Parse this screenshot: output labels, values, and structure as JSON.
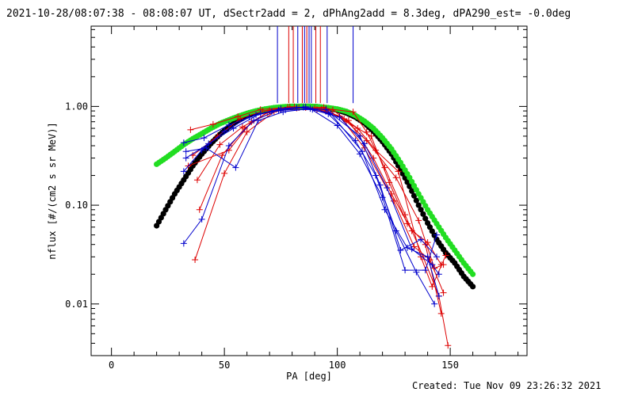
{
  "header": {
    "title": "2021-10-28/08:07:38 - 08:08:07 UT, dSectr2add = 2, dPhAng2add = 8.3deg, dPA290_est= -0.0deg"
  },
  "footer": {
    "created": "Created: Tue Nov 09 23:26:32 2021"
  },
  "chart_data": {
    "type": "scatter",
    "xlabel": "PA [deg]",
    "ylabel": "nflux [#/(cm2 s sr MeV)]",
    "xlim": [
      -9,
      184
    ],
    "ylim": [
      0.003,
      6.5
    ],
    "y_scale": "log",
    "x_ticks": [
      0,
      50,
      100,
      150
    ],
    "x_tick_labels": [
      "0",
      "50",
      "100",
      "150"
    ],
    "y_ticks": [
      0.01,
      0.1,
      1.0
    ],
    "y_tick_labels": [
      "0.01",
      "0.10",
      "1.00"
    ],
    "grid": false,
    "colors": {
      "fit_black": "#000000",
      "fit_green": "#22dd22",
      "red": "#dd0000",
      "blue": "#0000cc"
    },
    "vertical_markers": {
      "y_range": [
        1.08,
        6.5
      ],
      "lines": [
        {
          "x": 73.5,
          "color": "#0000cc"
        },
        {
          "x": 78.5,
          "color": "#dd0000"
        },
        {
          "x": 80.5,
          "color": "#dd0000"
        },
        {
          "x": 82.5,
          "color": "#0000cc"
        },
        {
          "x": 84.5,
          "color": "#dd0000"
        },
        {
          "x": 85.5,
          "color": "#0000cc"
        },
        {
          "x": 86.5,
          "color": "#dd0000"
        },
        {
          "x": 87.5,
          "color": "#0000cc"
        },
        {
          "x": 88.5,
          "color": "#0000cc"
        },
        {
          "x": 90.5,
          "color": "#dd0000"
        },
        {
          "x": 92.5,
          "color": "#dd0000"
        },
        {
          "x": 95.5,
          "color": "#0000cc"
        },
        {
          "x": 107.0,
          "color": "#0000cc"
        }
      ]
    },
    "series": [
      {
        "style": "dots",
        "color": "#000000",
        "x": [
          20,
          24,
          28,
          32,
          36,
          40,
          44,
          48,
          52,
          56,
          60,
          64,
          68,
          72,
          76,
          80,
          84,
          88,
          92,
          96,
          100,
          104,
          108,
          112,
          116,
          120,
          124,
          128,
          132,
          136,
          140,
          144,
          148,
          152,
          156,
          160
        ],
        "y": [
          0.062,
          0.09,
          0.13,
          0.18,
          0.25,
          0.33,
          0.42,
          0.52,
          0.62,
          0.72,
          0.8,
          0.87,
          0.92,
          0.96,
          0.98,
          0.99,
          1.0,
          1.0,
          0.99,
          0.96,
          0.92,
          0.86,
          0.78,
          0.68,
          0.56,
          0.44,
          0.33,
          0.23,
          0.155,
          0.1,
          0.066,
          0.045,
          0.033,
          0.026,
          0.019,
          0.015
        ]
      },
      {
        "style": "dots",
        "color": "#22dd22",
        "x": [
          20,
          24,
          28,
          32,
          36,
          40,
          44,
          48,
          52,
          56,
          60,
          64,
          68,
          72,
          76,
          80,
          84,
          88,
          92,
          96,
          100,
          104,
          108,
          112,
          116,
          120,
          124,
          128,
          132,
          136,
          140,
          144,
          148,
          152,
          156,
          160
        ],
        "y": [
          0.26,
          0.3,
          0.35,
          0.41,
          0.47,
          0.53,
          0.6,
          0.67,
          0.73,
          0.79,
          0.85,
          0.9,
          0.94,
          0.97,
          0.99,
          1.0,
          1.0,
          1.0,
          0.99,
          0.97,
          0.94,
          0.89,
          0.81,
          0.71,
          0.6,
          0.48,
          0.37,
          0.27,
          0.19,
          0.13,
          0.09,
          0.065,
          0.047,
          0.035,
          0.026,
          0.02
        ]
      },
      {
        "style": "line+cross",
        "color": "#dd0000",
        "x": [
          37,
          50,
          60,
          72,
          83,
          95,
          107,
          113,
          121,
          130,
          138,
          145,
          149
        ],
        "y": [
          0.028,
          0.21,
          0.55,
          0.88,
          0.97,
          0.95,
          0.88,
          0.55,
          0.24,
          0.08,
          0.03,
          0.012,
          0.0038
        ]
      },
      {
        "style": "line+cross",
        "color": "#dd0000",
        "x": [
          35,
          45,
          56,
          66,
          78,
          90,
          101,
          112,
          125,
          134,
          141,
          147
        ],
        "y": [
          0.58,
          0.66,
          0.79,
          0.93,
          0.98,
          0.96,
          0.8,
          0.38,
          0.11,
          0.038,
          0.028,
          0.013
        ]
      },
      {
        "style": "line+cross",
        "color": "#dd0000",
        "x": [
          38,
          48,
          58,
          69,
          81,
          93,
          105,
          116,
          124,
          133,
          140,
          146
        ],
        "y": [
          0.18,
          0.41,
          0.62,
          0.86,
          0.99,
          0.94,
          0.72,
          0.3,
          0.13,
          0.055,
          0.042,
          0.025
        ]
      },
      {
        "style": "line+cross",
        "color": "#dd0000",
        "x": [
          39,
          49,
          59,
          70,
          82,
          94,
          104,
          115,
          123,
          131,
          139,
          146
        ],
        "y": [
          0.09,
          0.32,
          0.6,
          0.91,
          0.96,
          0.98,
          0.7,
          0.5,
          0.17,
          0.065,
          0.04,
          0.008
        ]
      },
      {
        "style": "line+cross",
        "color": "#dd0000",
        "x": [
          36,
          47,
          57,
          67,
          79,
          91,
          103,
          113,
          126,
          136,
          143,
          147
        ],
        "y": [
          0.32,
          0.5,
          0.75,
          0.9,
          0.99,
          0.93,
          0.75,
          0.45,
          0.19,
          0.07,
          0.023,
          0.025
        ]
      },
      {
        "style": "line+cross",
        "color": "#dd0000",
        "x": [
          34,
          52,
          62,
          75,
          86,
          98,
          109,
          117,
          127,
          137,
          142,
          148
        ],
        "y": [
          0.25,
          0.36,
          0.7,
          0.94,
          0.97,
          0.92,
          0.6,
          0.36,
          0.22,
          0.03,
          0.015,
          0.031
        ]
      },
      {
        "style": "line+cross",
        "color": "#0000cc",
        "x": [
          32,
          40,
          52,
          63,
          74,
          85,
          96,
          108,
          117,
          126,
          135,
          143
        ],
        "y": [
          0.041,
          0.072,
          0.4,
          0.72,
          0.92,
          0.98,
          0.84,
          0.45,
          0.2,
          0.055,
          0.021,
          0.01
        ]
      },
      {
        "style": "line+cross",
        "color": "#0000cc",
        "x": [
          33,
          42,
          55,
          65,
          76,
          88,
          100,
          110,
          120,
          130,
          139,
          144
        ],
        "y": [
          0.35,
          0.38,
          0.24,
          0.72,
          0.88,
          0.95,
          0.64,
          0.33,
          0.12,
          0.022,
          0.022,
          0.05
        ]
      },
      {
        "style": "line+cross",
        "color": "#0000cc",
        "x": [
          32,
          41,
          52,
          64,
          75,
          86,
          97,
          111,
          121,
          131,
          140,
          145
        ],
        "y": [
          0.43,
          0.48,
          0.65,
          0.82,
          0.95,
          0.99,
          0.85,
          0.35,
          0.09,
          0.037,
          0.03,
          0.012
        ]
      },
      {
        "style": "line+cross",
        "color": "#0000cc",
        "x": [
          33,
          43,
          54,
          66,
          77,
          89,
          101,
          112,
          122,
          133,
          142,
          145
        ],
        "y": [
          0.3,
          0.42,
          0.6,
          0.85,
          0.92,
          0.93,
          0.78,
          0.42,
          0.15,
          0.036,
          0.025,
          0.02
        ]
      },
      {
        "style": "line+cross",
        "color": "#0000cc",
        "x": [
          32,
          40,
          50,
          61,
          71,
          82,
          95,
          110,
          119,
          128,
          137,
          144
        ],
        "y": [
          0.22,
          0.36,
          0.56,
          0.78,
          0.89,
          0.97,
          0.93,
          0.5,
          0.16,
          0.035,
          0.045,
          0.03
        ]
      }
    ]
  }
}
